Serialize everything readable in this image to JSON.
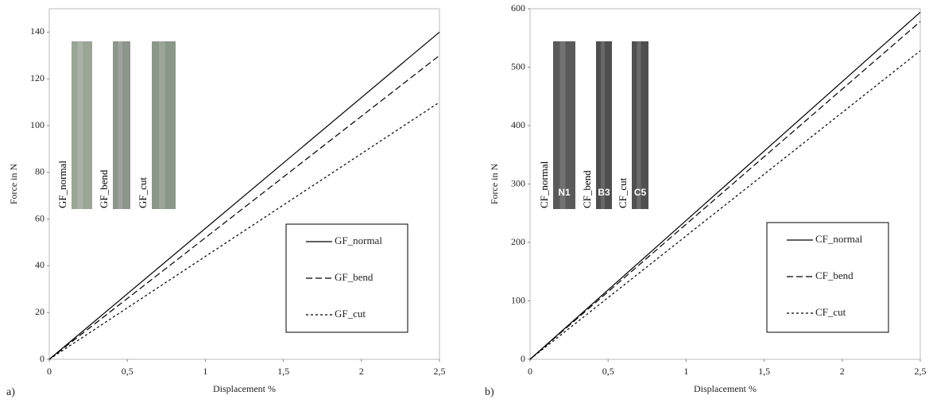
{
  "chart_data": [
    {
      "type": "line",
      "panel_label": "a)",
      "x_label": "Displacement %",
      "y_label": "Force in N",
      "xlim": [
        0,
        2.5
      ],
      "ylim": [
        0,
        150
      ],
      "xticks": [
        0,
        {
          "value": 0.5,
          "label": "0,5"
        },
        1,
        {
          "value": 1.5,
          "label": "1,5"
        },
        2,
        {
          "value": 2.5,
          "label": "2,5"
        }
      ],
      "yticks": [
        0,
        20,
        40,
        60,
        80,
        100,
        120,
        140
      ],
      "x": [
        0,
        2.5
      ],
      "series": [
        {
          "name": "GF_normal",
          "color": "#000000",
          "dash": "solid",
          "values": [
            0,
            140
          ]
        },
        {
          "name": "GF_bend",
          "color": "#000000",
          "dash": "dashed",
          "values": [
            0,
            130
          ]
        },
        {
          "name": "GF_cut",
          "color": "#000000",
          "dash": "dotted",
          "values": [
            0,
            110
          ]
        }
      ],
      "photo_labels": [
        "GF_normal",
        "GF_bend",
        "GF_cut"
      ]
    },
    {
      "type": "line",
      "panel_label": "b)",
      "x_label": "Displacement %",
      "y_label": "Force in N",
      "xlim": [
        0,
        2.5
      ],
      "ylim": [
        0,
        600
      ],
      "xticks": [
        0,
        {
          "value": 0.5,
          "label": "0,5"
        },
        1,
        {
          "value": 1.5,
          "label": "1,5"
        },
        2,
        {
          "value": 2.5,
          "label": "2,5"
        }
      ],
      "yticks": [
        0,
        100,
        200,
        300,
        400,
        500,
        600
      ],
      "x": [
        0,
        2.5
      ],
      "series": [
        {
          "name": "CF_normal",
          "color": "#000000",
          "dash": "solid",
          "values": [
            0,
            594
          ]
        },
        {
          "name": "CF_bend",
          "color": "#000000",
          "dash": "dashed",
          "values": [
            0,
            578
          ]
        },
        {
          "name": "CF_cut",
          "color": "#000000",
          "dash": "dotted",
          "values": [
            0,
            528
          ]
        }
      ],
      "photo_labels": [
        "CF_normal",
        "CF_bend",
        "CF_cut"
      ],
      "photo_marks": [
        "N1",
        "B3",
        "C5"
      ]
    }
  ]
}
